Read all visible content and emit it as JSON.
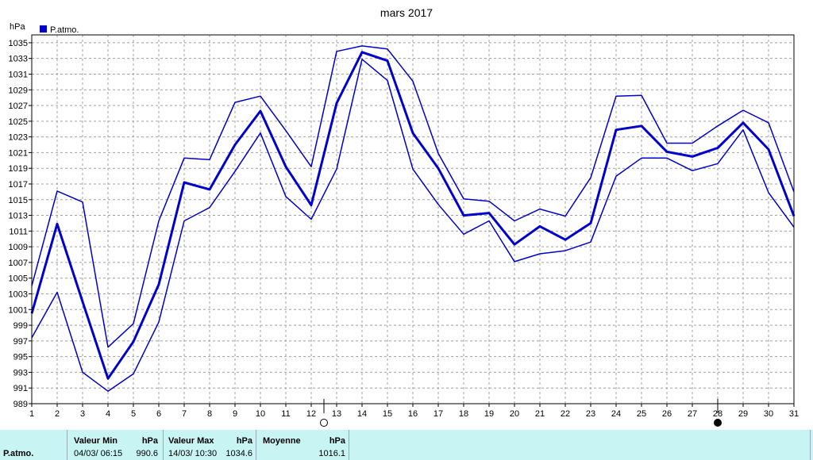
{
  "chart_data": {
    "type": "line",
    "title": "mars 2017",
    "ylabel": "hPa",
    "legend": {
      "label": "P.atmo.",
      "position": "top-left",
      "color": "#0000cc"
    },
    "ylim": [
      989,
      1036
    ],
    "yticks": [
      989,
      991,
      993,
      995,
      997,
      999,
      1001,
      1003,
      1005,
      1007,
      1009,
      1011,
      1013,
      1015,
      1017,
      1019,
      1021,
      1023,
      1025,
      1027,
      1029,
      1031,
      1033,
      1035
    ],
    "x": [
      1,
      2,
      3,
      4,
      5,
      6,
      7,
      8,
      9,
      10,
      11,
      12,
      13,
      14,
      15,
      16,
      17,
      18,
      19,
      20,
      21,
      22,
      23,
      24,
      25,
      26,
      27,
      28,
      29,
      30,
      31
    ],
    "grid": true,
    "moon_phases": [
      {
        "day": 12.5,
        "phase": "full-moon"
      },
      {
        "day": 28,
        "phase": "new-moon"
      }
    ],
    "series": [
      {
        "role": "max",
        "line_width": 1.5,
        "values": [
          1004.0,
          1016.1,
          1014.7,
          996.2,
          999.2,
          1012.3,
          1020.3,
          1020.1,
          1027.4,
          1028.2,
          1023.8,
          1019.2,
          1033.9,
          1034.6,
          1034.2,
          1030.1,
          1020.9,
          1015.1,
          1014.8,
          1012.3,
          1013.8,
          1012.9,
          1017.8,
          1028.2,
          1028.3,
          1022.2,
          1022.2,
          1024.4,
          1026.4,
          1024.8,
          1016.0
        ]
      },
      {
        "role": "avg",
        "line_width": 3,
        "values": [
          1000.5,
          1011.9,
          1002.0,
          992.2,
          996.9,
          1004.2,
          1017.2,
          1016.3,
          1022.0,
          1026.3,
          1019.2,
          1014.3,
          1027.3,
          1033.8,
          1032.7,
          1023.5,
          1019.0,
          1013.0,
          1013.3,
          1009.3,
          1011.6,
          1009.9,
          1012.0,
          1023.9,
          1024.4,
          1021.1,
          1020.5,
          1021.6,
          1024.8,
          1021.4,
          1012.9
        ]
      },
      {
        "role": "min",
        "line_width": 1.5,
        "values": [
          997.4,
          1003.2,
          993.0,
          990.6,
          992.8,
          999.4,
          1012.3,
          1014.0,
          1018.6,
          1023.5,
          1015.4,
          1012.5,
          1018.9,
          1032.9,
          1030.2,
          1018.9,
          1014.4,
          1010.6,
          1012.3,
          1007.1,
          1008.1,
          1008.5,
          1009.6,
          1018.0,
          1020.3,
          1020.3,
          1018.7,
          1019.6,
          1023.9,
          1015.9,
          1011.5
        ]
      }
    ]
  },
  "footer": {
    "series_label": "P.atmo.",
    "min_header": "Valeur Min",
    "min_unit": "hPa",
    "min_date": "04/03/  06:15",
    "min_value": "990.6",
    "max_header": "Valeur Max",
    "max_unit": "hPa",
    "max_date": "14/03/  10:30",
    "max_value": "1034.6",
    "avg_header": "Moyenne",
    "avg_unit": "hPa",
    "avg_value": "1016.1"
  },
  "colors": {
    "line": "#0000cc",
    "grid": "#a0a0a0",
    "footer_bg": "#c8f4f4"
  }
}
